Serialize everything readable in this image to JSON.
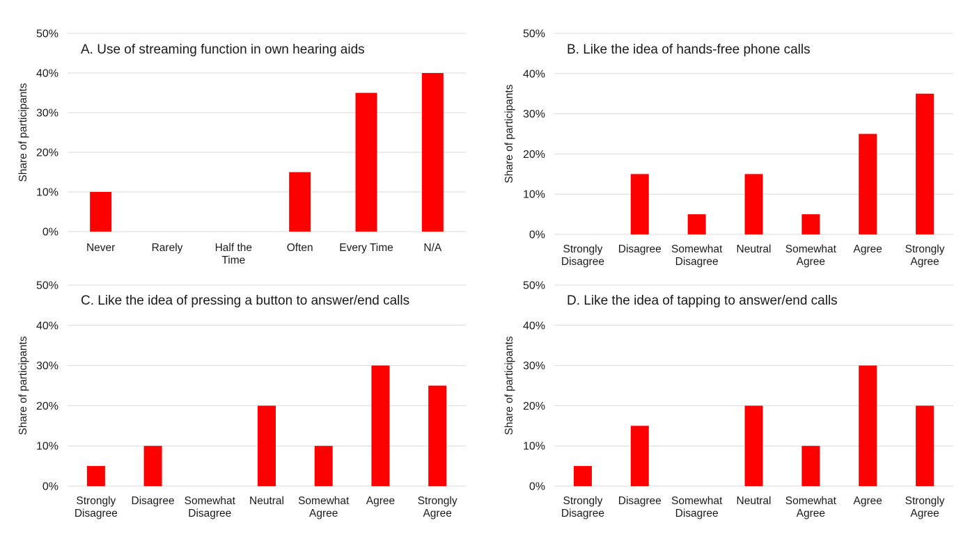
{
  "colors": {
    "bar": "#ff0000",
    "grid": "#d9d9d9",
    "text": "#1a1a1a"
  },
  "chart_data": [
    {
      "type": "bar",
      "title": "A. Use of streaming function in own hearing aids",
      "xlabel": "",
      "ylabel": "Share of participants",
      "ylim": [
        0,
        50
      ],
      "yticks": [
        "0%",
        "10%",
        "20%",
        "30%",
        "40%",
        "50%"
      ],
      "grid": true,
      "categories": [
        [
          "Never"
        ],
        [
          "Rarely"
        ],
        [
          "Half the",
          "Time"
        ],
        [
          "Often"
        ],
        [
          "Every Time"
        ],
        [
          "N/A"
        ]
      ],
      "values": [
        10,
        0,
        0,
        15,
        35,
        40
      ]
    },
    {
      "type": "bar",
      "title": "B. Like the idea of hands-free phone calls",
      "xlabel": "",
      "ylabel": "Share of participants",
      "ylim": [
        0,
        50
      ],
      "yticks": [
        "0%",
        "10%",
        "20%",
        "30%",
        "40%",
        "50%"
      ],
      "grid": true,
      "categories": [
        [
          "Strongly",
          "Disagree"
        ],
        [
          "Disagree"
        ],
        [
          "Somewhat",
          "Disagree"
        ],
        [
          "Neutral"
        ],
        [
          "Somewhat",
          "Agree"
        ],
        [
          "Agree"
        ],
        [
          "Strongly",
          "Agree"
        ]
      ],
      "values": [
        0,
        15,
        5,
        15,
        5,
        25,
        35
      ]
    },
    {
      "type": "bar",
      "title": "C. Like the idea of pressing a button to answer/end calls",
      "xlabel": "",
      "ylabel": "Share of participants",
      "ylim": [
        0,
        50
      ],
      "yticks": [
        "0%",
        "10%",
        "20%",
        "30%",
        "40%",
        "50%"
      ],
      "grid": true,
      "categories": [
        [
          "Strongly",
          "Disagree"
        ],
        [
          "Disagree"
        ],
        [
          "Somewhat",
          "Disagree"
        ],
        [
          "Neutral"
        ],
        [
          "Somewhat",
          "Agree"
        ],
        [
          "Agree"
        ],
        [
          "Strongly",
          "Agree"
        ]
      ],
      "values": [
        5,
        10,
        0,
        20,
        10,
        30,
        25
      ]
    },
    {
      "type": "bar",
      "title": "D. Like the idea of tapping to answer/end calls",
      "xlabel": "",
      "ylabel": "Share of participants",
      "ylim": [
        0,
        50
      ],
      "yticks": [
        "0%",
        "10%",
        "20%",
        "30%",
        "40%",
        "50%"
      ],
      "grid": true,
      "categories": [
        [
          "Strongly",
          "Disagree"
        ],
        [
          "Disagree"
        ],
        [
          "Somewhat",
          "Disagree"
        ],
        [
          "Neutral"
        ],
        [
          "Somewhat",
          "Agree"
        ],
        [
          "Agree"
        ],
        [
          "Strongly",
          "Agree"
        ]
      ],
      "values": [
        5,
        15,
        0,
        20,
        10,
        30,
        20
      ]
    }
  ]
}
